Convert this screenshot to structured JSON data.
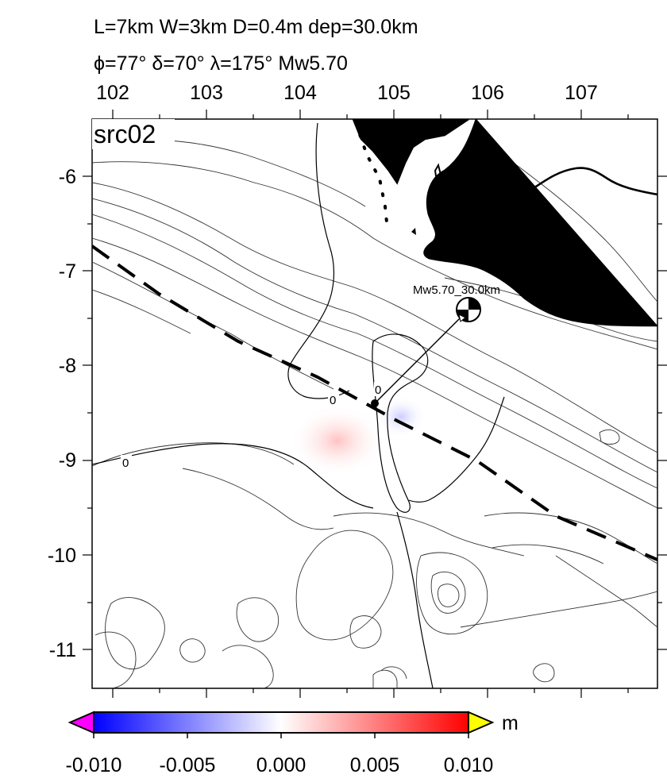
{
  "header": {
    "line1": "L=7km W=3km D=0.4m dep=30.0km",
    "line2": "ϕ=77° δ=70° λ=175° Mw5.70"
  },
  "map": {
    "panel_label": "src02",
    "lon_ticks": [
      "102",
      "103",
      "104",
      "105",
      "106",
      "107"
    ],
    "lat_ticks": [
      "-6",
      "-7",
      "-8",
      "-9",
      "-10",
      "-11"
    ],
    "contour_labels": [
      "0",
      "0",
      "0"
    ],
    "mechanism_label": "Mw5.70_30.0km",
    "epicenter": {
      "lon": 104.8,
      "lat": -8.4
    },
    "mechanism_position": {
      "lon": 105.8,
      "lat": -7.4
    }
  },
  "colorbar": {
    "unit": "m",
    "ticks": [
      "-0.010",
      "-0.005",
      "0.000",
      "0.005",
      "0.010"
    ],
    "colors": {
      "low": "#0000ff",
      "mid": "#ffffff",
      "high": "#ff0000",
      "under": "#ff00ff",
      "over": "#ffff00"
    }
  }
}
